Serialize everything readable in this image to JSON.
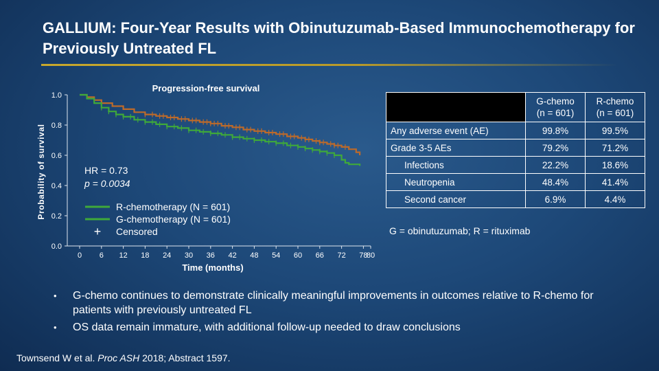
{
  "slide": {
    "title": "GALLIUM: Four-Year Results with Obinutuzumab-Based Immunochemotherapy for Previously Untreated FL"
  },
  "colors": {
    "r_chemo": "#bd6a2a",
    "g_chemo": "#3fa93a",
    "accent_rule": "#c8a82c"
  },
  "chart_data": {
    "type": "line",
    "title": "Progression-free survival",
    "xlabel": "Time (months)",
    "ylabel": "Probability of survival",
    "xlim": [
      0,
      80
    ],
    "ylim": [
      0,
      1.0
    ],
    "x_ticks": [
      0,
      6,
      12,
      18,
      24,
      30,
      36,
      42,
      48,
      54,
      60,
      66,
      72,
      78,
      80
    ],
    "y_ticks": [
      0.0,
      0.2,
      0.4,
      0.6,
      0.8,
      1.0
    ],
    "y_tick_labels": [
      "0.0",
      "0.2",
      "0.4",
      "0.6",
      "0.8",
      "1.0"
    ],
    "annotation": {
      "hr": "HR = 0.73",
      "p": "p = 0.0034"
    },
    "legend": [
      {
        "label": "R-chemotherapy (N = 601)",
        "series": "R-chemo"
      },
      {
        "label": "G-chemotherapy (N = 601)",
        "series": "G-chemo"
      },
      {
        "label": "Censored",
        "marker": "+"
      }
    ],
    "series": [
      {
        "name": "G-chemo",
        "color": "#bd6a2a",
        "points": [
          [
            0,
            1.0
          ],
          [
            2,
            0.985
          ],
          [
            4,
            0.965
          ],
          [
            6,
            0.945
          ],
          [
            9,
            0.925
          ],
          [
            12,
            0.905
          ],
          [
            15,
            0.885
          ],
          [
            18,
            0.87
          ],
          [
            21,
            0.86
          ],
          [
            24,
            0.85
          ],
          [
            27,
            0.84
          ],
          [
            30,
            0.83
          ],
          [
            33,
            0.82
          ],
          [
            36,
            0.81
          ],
          [
            39,
            0.795
          ],
          [
            42,
            0.785
          ],
          [
            45,
            0.77
          ],
          [
            48,
            0.76
          ],
          [
            51,
            0.75
          ],
          [
            54,
            0.74
          ],
          [
            57,
            0.725
          ],
          [
            60,
            0.715
          ],
          [
            62,
            0.705
          ],
          [
            64,
            0.695
          ],
          [
            66,
            0.685
          ],
          [
            68,
            0.675
          ],
          [
            70,
            0.665
          ],
          [
            72,
            0.655
          ],
          [
            74,
            0.64
          ],
          [
            76,
            0.62
          ],
          [
            77,
            0.6
          ]
        ],
        "censor_x": [
          18,
          20,
          22,
          23,
          25,
          26,
          28,
          29,
          31,
          32,
          34,
          35,
          36,
          37,
          38,
          40,
          41,
          43,
          44,
          46,
          47,
          49,
          50,
          52,
          53,
          55,
          56,
          58,
          59,
          61,
          62,
          63,
          65,
          66,
          67,
          69,
          70,
          71,
          73
        ]
      },
      {
        "name": "R-chemo",
        "color": "#3fa93a",
        "points": [
          [
            0,
            1.0
          ],
          [
            2,
            0.975
          ],
          [
            4,
            0.945
          ],
          [
            6,
            0.915
          ],
          [
            8,
            0.89
          ],
          [
            10,
            0.87
          ],
          [
            12,
            0.855
          ],
          [
            15,
            0.835
          ],
          [
            18,
            0.82
          ],
          [
            21,
            0.805
          ],
          [
            24,
            0.79
          ],
          [
            27,
            0.78
          ],
          [
            30,
            0.765
          ],
          [
            33,
            0.755
          ],
          [
            36,
            0.745
          ],
          [
            39,
            0.735
          ],
          [
            42,
            0.72
          ],
          [
            45,
            0.71
          ],
          [
            48,
            0.7
          ],
          [
            51,
            0.69
          ],
          [
            54,
            0.68
          ],
          [
            57,
            0.665
          ],
          [
            60,
            0.655
          ],
          [
            62,
            0.645
          ],
          [
            64,
            0.635
          ],
          [
            66,
            0.625
          ],
          [
            68,
            0.615
          ],
          [
            70,
            0.6
          ],
          [
            72,
            0.57
          ],
          [
            73,
            0.55
          ],
          [
            74,
            0.54
          ],
          [
            76,
            0.54
          ],
          [
            77,
            0.53
          ]
        ],
        "censor_x": [
          6,
          8,
          10,
          12,
          14,
          16,
          18,
          20,
          22,
          24,
          26,
          28,
          30,
          32,
          34,
          36,
          38,
          40,
          42,
          44,
          46,
          48,
          50,
          52,
          54,
          56,
          58,
          60,
          62,
          64,
          66,
          68,
          70
        ]
      }
    ]
  },
  "table": {
    "headers": [
      "",
      "G-chemo (n = 601)",
      "R-chemo (n = 601)"
    ],
    "header_lines": [
      [
        "G-chemo",
        "(n = 601)"
      ],
      [
        "R-chemo",
        "(n = 601)"
      ]
    ],
    "rows": [
      {
        "label": "Any adverse event (AE)",
        "g": "99.8%",
        "r": "99.5%",
        "indent": false
      },
      {
        "label": "Grade 3-5 AEs",
        "g": "79.2%",
        "r": "71.2%",
        "indent": false
      },
      {
        "label": "Infections",
        "g": "22.2%",
        "r": "18.6%",
        "indent": true
      },
      {
        "label": "Neutropenia",
        "g": "48.4%",
        "r": "41.4%",
        "indent": true
      },
      {
        "label": "Second cancer",
        "g": "6.9%",
        "r": "4.4%",
        "indent": true
      }
    ]
  },
  "abbrev": "G = obinutuzumab; R = rituximab",
  "bullets": [
    "G-chemo continues to demonstrate clinically meaningful improvements in outcomes relative to R-chemo for patients with previously untreated FL",
    "OS data remain immature, with additional follow-up needed to draw conclusions"
  ],
  "bullet_symbol": "•",
  "footnote": {
    "authors": "Townsend W et al.",
    "journal": "Proc ASH",
    "rest": "2018; Abstract 1597."
  }
}
